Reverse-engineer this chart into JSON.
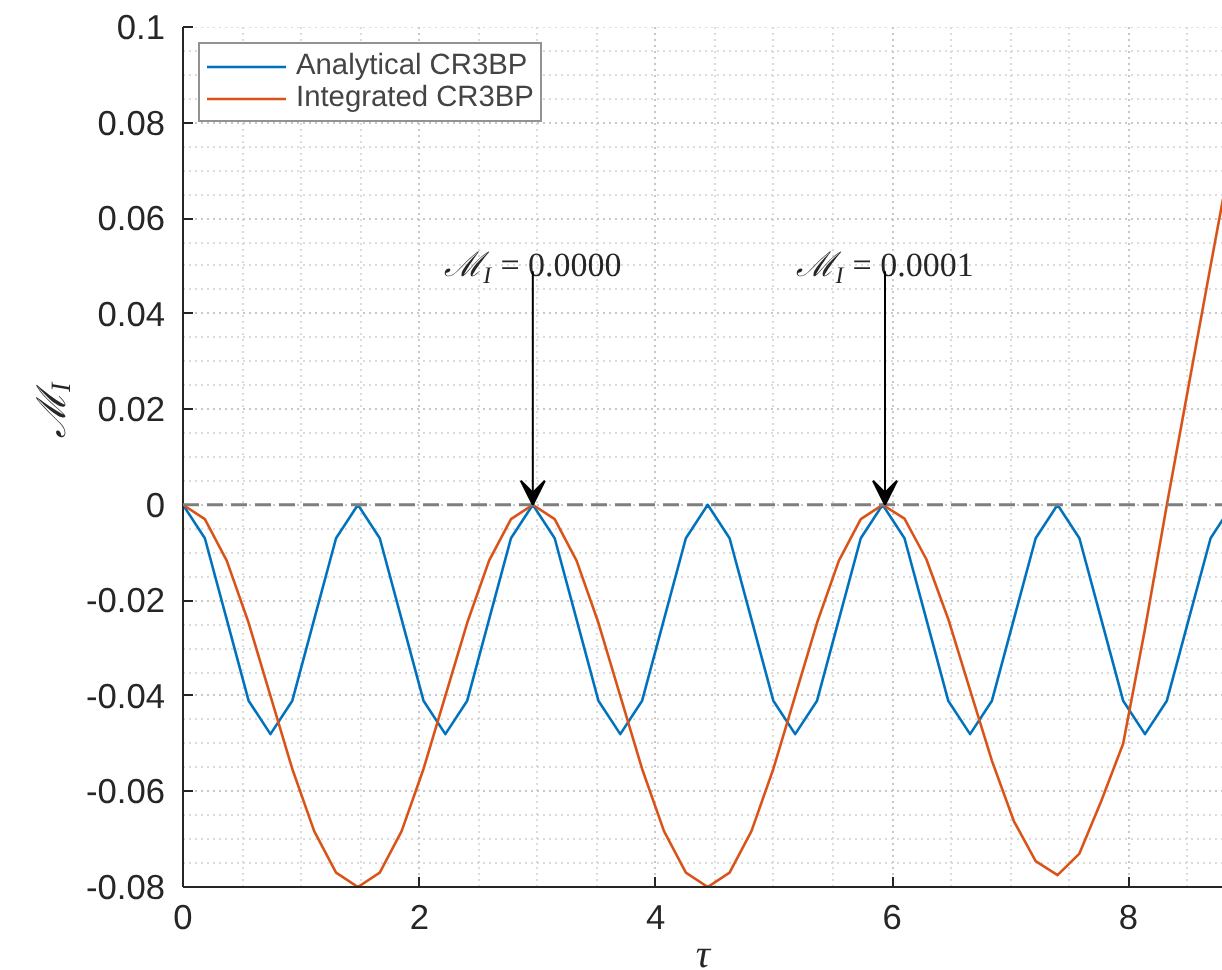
{
  "chart_data": {
    "type": "line",
    "xlabel": "τ",
    "ylabel": "ℳ$_{I}$",
    "xlim": [
      0,
      8.8
    ],
    "ylim": [
      -0.08,
      0.1
    ],
    "xticks": [
      0,
      2,
      4,
      6,
      8
    ],
    "yticks": [
      -0.08,
      -0.06,
      -0.04,
      -0.02,
      0,
      0.02,
      0.04,
      0.06,
      0.08,
      0.1
    ],
    "grid": true,
    "legend": "top left",
    "line_style": "solid",
    "marker": "none",
    "ref_lines": [
      {
        "axis": "y",
        "value": 0,
        "color": "#7f7f7f",
        "line_style": "dashed"
      }
    ],
    "annotations": [
      {
        "text": "ℳ$_{I}$ = 0.0000",
        "x": 2.96,
        "y": 0
      },
      {
        "text": "ℳ$_{I}$ = 0.0001",
        "x": 5.94,
        "y": 0
      }
    ],
    "series": [
      {
        "name": "Analytical CR3BP",
        "color": "#0072bd",
        "x": [
          0,
          0.185,
          0.37,
          0.555,
          0.74,
          0.925,
          1.11,
          1.295,
          1.48,
          1.665,
          1.85,
          2.035,
          2.22,
          2.405,
          2.59,
          2.775,
          2.96,
          3.145,
          3.33,
          3.515,
          3.7,
          3.885,
          4.07,
          4.255,
          4.44,
          4.625,
          4.81,
          4.995,
          5.18,
          5.365,
          5.55,
          5.735,
          5.92,
          6.105,
          6.29,
          6.475,
          6.66,
          6.845,
          7.03,
          7.215,
          7.4,
          7.585,
          7.77,
          7.955,
          8.14,
          8.325,
          8.51,
          8.695,
          8.8
        ],
        "values": [
          0,
          -0.007,
          -0.024,
          -0.041,
          -0.048,
          -0.041,
          -0.024,
          -0.007,
          0,
          -0.007,
          -0.024,
          -0.041,
          -0.048,
          -0.041,
          -0.024,
          -0.007,
          0,
          -0.007,
          -0.024,
          -0.041,
          -0.048,
          -0.041,
          -0.024,
          -0.007,
          0,
          -0.007,
          -0.024,
          -0.041,
          -0.048,
          -0.041,
          -0.024,
          -0.007,
          0,
          -0.007,
          -0.024,
          -0.041,
          -0.048,
          -0.041,
          -0.024,
          -0.007,
          0,
          -0.007,
          -0.024,
          -0.041,
          -0.048,
          -0.041,
          -0.024,
          -0.007,
          -0.003
        ]
      },
      {
        "name": "Integrated CR3BP",
        "color": "#d95319",
        "x": [
          0,
          0.185,
          0.37,
          0.555,
          0.74,
          0.925,
          1.11,
          1.295,
          1.48,
          1.665,
          1.85,
          2.035,
          2.22,
          2.405,
          2.59,
          2.775,
          2.96,
          3.145,
          3.33,
          3.515,
          3.7,
          3.885,
          4.07,
          4.255,
          4.44,
          4.625,
          4.81,
          4.995,
          5.18,
          5.365,
          5.55,
          5.735,
          5.92,
          6.105,
          6.29,
          6.475,
          6.66,
          6.845,
          7.03,
          7.215,
          7.4,
          7.585,
          7.77,
          7.955,
          8.14,
          8.325,
          8.51,
          8.695,
          8.8
        ],
        "values": [
          0,
          -0.003,
          -0.0117,
          -0.0247,
          -0.04,
          -0.0553,
          -0.0683,
          -0.077,
          -0.08,
          -0.077,
          -0.0683,
          -0.0553,
          -0.04,
          -0.0247,
          -0.0117,
          -0.003,
          0,
          -0.003,
          -0.0117,
          -0.0247,
          -0.04,
          -0.0553,
          -0.0683,
          -0.077,
          -0.08,
          -0.077,
          -0.0683,
          -0.0553,
          -0.04,
          -0.0247,
          -0.0117,
          -0.003,
          0,
          -0.0029,
          -0.0114,
          -0.0239,
          -0.0388,
          -0.0536,
          -0.0662,
          -0.0746,
          -0.0775,
          -0.073,
          -0.062,
          -0.05,
          -0.026,
          0,
          0.025,
          0.05,
          0.064
        ]
      }
    ]
  }
}
